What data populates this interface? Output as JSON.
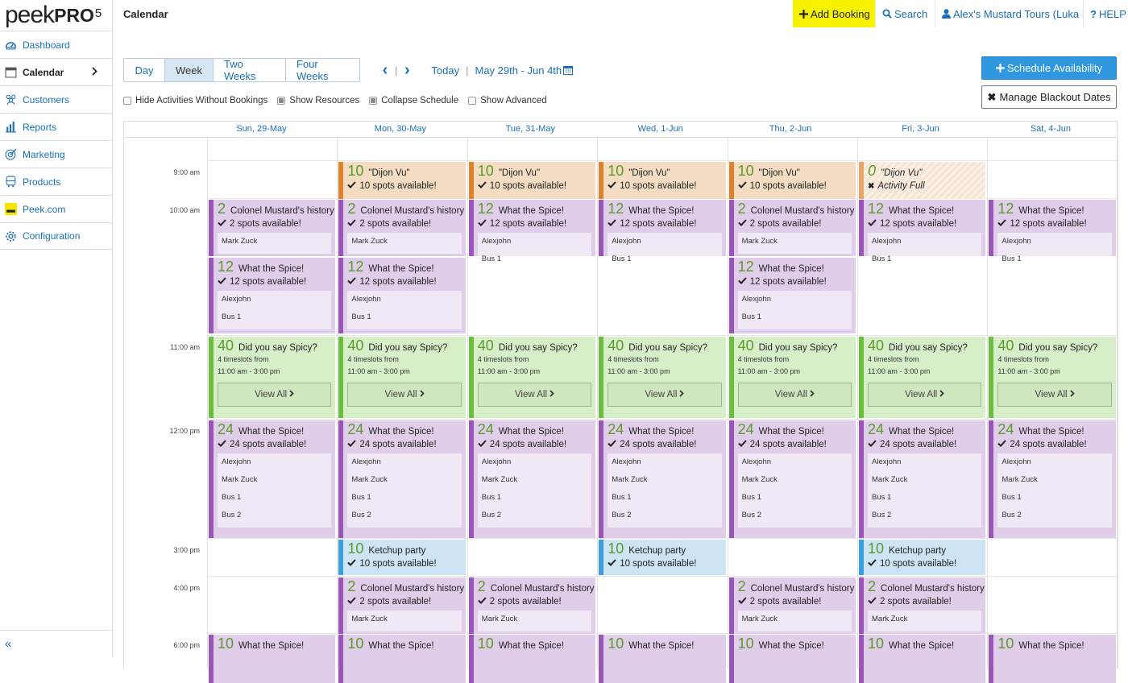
{
  "app": {
    "brand": "peek",
    "brand_bold": "PRO",
    "brand_sup": "5",
    "page_title": "Calendar"
  },
  "sidebar": {
    "items": [
      {
        "label": "Dashboard",
        "icon": "gauge-icon"
      },
      {
        "label": "Calendar",
        "icon": "calendar-icon"
      },
      {
        "label": "Customers",
        "icon": "users-icon"
      },
      {
        "label": "Reports",
        "icon": "bar-chart-icon"
      },
      {
        "label": "Marketing",
        "icon": "target-icon"
      },
      {
        "label": "Products",
        "icon": "bus-icon"
      },
      {
        "label": "Peek.com",
        "icon": "peek-logo-icon"
      },
      {
        "label": "Configuration",
        "icon": "gear-icon"
      }
    ],
    "collapse": "«"
  },
  "topbar": {
    "add_booking": "Add Booking",
    "search": "Search",
    "account": "Alex's Mustard Tours (Luka",
    "help": "HELP"
  },
  "views": [
    "Day",
    "Week",
    "Two Weeks",
    "Four Weeks"
  ],
  "active_view": "Week",
  "datenav": {
    "today": "Today",
    "sep": "|",
    "range": "May 29th - Jun 4th"
  },
  "options": [
    {
      "label": "Hide Activities Without Bookings",
      "checked": false
    },
    {
      "label": "Show Resources",
      "checked": true
    },
    {
      "label": "Collapse Schedule",
      "checked": true
    },
    {
      "label": "Show Advanced",
      "checked": false
    }
  ],
  "buttons": {
    "schedule": "Schedule Availability",
    "blackout": "Manage Blackout Dates"
  },
  "days": [
    "Sun, 29-May",
    "Mon, 30-May",
    "Tue, 31-May",
    "Wed, 1-Jun",
    "Thu, 2-Jun",
    "Fri, 3-Jun",
    "Sat, 4-Jun"
  ],
  "times": [
    "9:00 am",
    "10:00 am",
    "11:00 am",
    "12:00 pm",
    "3:00 pm",
    "4:00 pm",
    "6:00 pm"
  ],
  "events": [
    {
      "day": 1,
      "slot": "9am",
      "color": "orange",
      "n": "10",
      "name": "\"Dijon Vu\"",
      "status": "10 spots available!"
    },
    {
      "day": 2,
      "slot": "9am",
      "color": "orange",
      "n": "10",
      "name": "\"Dijon Vu\"",
      "status": "10 spots available!"
    },
    {
      "day": 3,
      "slot": "9am",
      "color": "orange",
      "n": "10",
      "name": "\"Dijon Vu\"",
      "status": "10 spots available!"
    },
    {
      "day": 4,
      "slot": "9am",
      "color": "orange",
      "n": "10",
      "name": "\"Dijon Vu\"",
      "status": "10 spots available!"
    },
    {
      "day": 5,
      "slot": "9am",
      "color": "full",
      "n": "0",
      "name": "\"Dijon Vu\"",
      "status": "Activity Full",
      "full": true
    },
    {
      "day": 0,
      "slot": "10a",
      "color": "purple",
      "n": "2",
      "name": "Colonel Mustard's history",
      "status": "2 spots available!",
      "res": [
        "Mark Zuck"
      ]
    },
    {
      "day": 1,
      "slot": "10a",
      "color": "purple",
      "n": "2",
      "name": "Colonel Mustard's history",
      "status": "2 spots available!",
      "res": [
        "Mark Zuck"
      ]
    },
    {
      "day": 2,
      "slot": "10a",
      "color": "purple",
      "n": "12",
      "name": "What the Spice!",
      "status": "12 spots available!",
      "res": [
        "Alexjohn",
        "Bus 1"
      ]
    },
    {
      "day": 3,
      "slot": "10a",
      "color": "purple",
      "n": "12",
      "name": "What the Spice!",
      "status": "12 spots available!",
      "res": [
        "Alexjohn",
        "Bus 1"
      ]
    },
    {
      "day": 4,
      "slot": "10a",
      "color": "purple",
      "n": "2",
      "name": "Colonel Mustard's history",
      "status": "2 spots available!",
      "res": [
        "Mark Zuck"
      ]
    },
    {
      "day": 5,
      "slot": "10a",
      "color": "purple",
      "n": "12",
      "name": "What the Spice!",
      "status": "12 spots available!",
      "res": [
        "Alexjohn",
        "Bus 1"
      ]
    },
    {
      "day": 6,
      "slot": "10a",
      "color": "purple",
      "n": "12",
      "name": "What the Spice!",
      "status": "12 spots available!",
      "res": [
        "Alexjohn",
        "Bus 1"
      ]
    },
    {
      "day": 0,
      "slot": "10b",
      "color": "purple",
      "n": "12",
      "name": "What the Spice!",
      "status": "12 spots available!",
      "res": [
        "Alexjohn",
        "Bus 1"
      ]
    },
    {
      "day": 1,
      "slot": "10b",
      "color": "purple",
      "n": "12",
      "name": "What the Spice!",
      "status": "12 spots available!",
      "res": [
        "Alexjohn",
        "Bus 1"
      ]
    },
    {
      "day": 4,
      "slot": "10b",
      "color": "purple",
      "n": "12",
      "name": "What the Spice!",
      "status": "12 spots available!",
      "res": [
        "Alexjohn",
        "Bus 1"
      ]
    },
    {
      "day": 0,
      "slot": "11",
      "color": "green",
      "n": "40",
      "name": "Did you say Spicy?",
      "ts": [
        "4 timeslots from",
        "11:00 am - 3:00 pm"
      ],
      "view": "View All"
    },
    {
      "day": 1,
      "slot": "11",
      "color": "green",
      "n": "40",
      "name": "Did you say Spicy?",
      "ts": [
        "4 timeslots from",
        "11:00 am - 3:00 pm"
      ],
      "view": "View All"
    },
    {
      "day": 2,
      "slot": "11",
      "color": "green",
      "n": "40",
      "name": "Did you say Spicy?",
      "ts": [
        "4 timeslots from",
        "11:00 am - 3:00 pm"
      ],
      "view": "View All"
    },
    {
      "day": 3,
      "slot": "11",
      "color": "green",
      "n": "40",
      "name": "Did you say Spicy?",
      "ts": [
        "4 timeslots from",
        "11:00 am - 3:00 pm"
      ],
      "view": "View All"
    },
    {
      "day": 4,
      "slot": "11",
      "color": "green",
      "n": "40",
      "name": "Did you say Spicy?",
      "ts": [
        "4 timeslots from",
        "11:00 am - 3:00 pm"
      ],
      "view": "View All"
    },
    {
      "day": 5,
      "slot": "11",
      "color": "green",
      "n": "40",
      "name": "Did you say Spicy?",
      "ts": [
        "4 timeslots from",
        "11:00 am - 3:00 pm"
      ],
      "view": "View All"
    },
    {
      "day": 6,
      "slot": "11",
      "color": "green",
      "n": "40",
      "name": "Did you say Spicy?",
      "ts": [
        "4 timeslots from",
        "11:00 am - 3:00 pm"
      ],
      "view": "View All"
    },
    {
      "day": 0,
      "slot": "12",
      "color": "purple",
      "n": "24",
      "name": "What the Spice!",
      "status": "24 spots available!",
      "res": [
        "Alexjohn",
        "Mark Zuck",
        "Bus 1",
        "Bus 2"
      ]
    },
    {
      "day": 1,
      "slot": "12",
      "color": "purple",
      "n": "24",
      "name": "What the Spice!",
      "status": "24 spots available!",
      "res": [
        "Alexjohn",
        "Mark Zuck",
        "Bus 1",
        "Bus 2"
      ]
    },
    {
      "day": 2,
      "slot": "12",
      "color": "purple",
      "n": "24",
      "name": "What the Spice!",
      "status": "24 spots available!",
      "res": [
        "Alexjohn",
        "Mark Zuck",
        "Bus 1",
        "Bus 2"
      ]
    },
    {
      "day": 3,
      "slot": "12",
      "color": "purple",
      "n": "24",
      "name": "What the Spice!",
      "status": "24 spots available!",
      "res": [
        "Alexjohn",
        "Mark Zuck",
        "Bus 1",
        "Bus 2"
      ]
    },
    {
      "day": 4,
      "slot": "12",
      "color": "purple",
      "n": "24",
      "name": "What the Spice!",
      "status": "24 spots available!",
      "res": [
        "Alexjohn",
        "Mark Zuck",
        "Bus 1",
        "Bus 2"
      ]
    },
    {
      "day": 5,
      "slot": "12",
      "color": "purple",
      "n": "24",
      "name": "What the Spice!",
      "status": "24 spots available!",
      "res": [
        "Alexjohn",
        "Mark Zuck",
        "Bus 1",
        "Bus 2"
      ]
    },
    {
      "day": 6,
      "slot": "12",
      "color": "purple",
      "n": "24",
      "name": "What the Spice!",
      "status": "24 spots available!",
      "res": [
        "Alexjohn",
        "Mark Zuck",
        "Bus 1",
        "Bus 2"
      ]
    },
    {
      "day": 1,
      "slot": "3",
      "color": "blue",
      "n": "10",
      "name": "Ketchup party",
      "status": "10 spots available!"
    },
    {
      "day": 3,
      "slot": "3",
      "color": "blue",
      "n": "10",
      "name": "Ketchup party",
      "status": "10 spots available!"
    },
    {
      "day": 5,
      "slot": "3",
      "color": "blue",
      "n": "10",
      "name": "Ketchup party",
      "status": "10 spots available!"
    },
    {
      "day": 1,
      "slot": "4",
      "color": "purple",
      "n": "2",
      "name": "Colonel Mustard's history",
      "status": "2 spots available!",
      "res": [
        "Mark Zuck"
      ]
    },
    {
      "day": 2,
      "slot": "4",
      "color": "purple",
      "n": "2",
      "name": "Colonel Mustard's history",
      "status": "2 spots available!",
      "res": [
        "Mark Zuck"
      ]
    },
    {
      "day": 4,
      "slot": "4",
      "color": "purple",
      "n": "2",
      "name": "Colonel Mustard's history",
      "status": "2 spots available!",
      "res": [
        "Mark Zuck"
      ]
    },
    {
      "day": 5,
      "slot": "4",
      "color": "purple",
      "n": "2",
      "name": "Colonel Mustard's history",
      "status": "2 spots available!",
      "res": [
        "Mark Zuck"
      ]
    },
    {
      "day": 0,
      "slot": "6",
      "color": "purple",
      "n": "10",
      "name": "What the Spice!"
    },
    {
      "day": 1,
      "slot": "6",
      "color": "purple",
      "n": "10",
      "name": "What the Spice!"
    },
    {
      "day": 2,
      "slot": "6",
      "color": "purple",
      "n": "10",
      "name": "What the Spice!"
    },
    {
      "day": 3,
      "slot": "6",
      "color": "purple",
      "n": "10",
      "name": "What the Spice!"
    },
    {
      "day": 4,
      "slot": "6",
      "color": "purple",
      "n": "10",
      "name": "What the Spice!"
    },
    {
      "day": 5,
      "slot": "6",
      "color": "purple",
      "n": "10",
      "name": "What the Spice!"
    },
    {
      "day": 6,
      "slot": "6",
      "color": "purple",
      "n": "10",
      "name": "What the Spice!"
    }
  ]
}
